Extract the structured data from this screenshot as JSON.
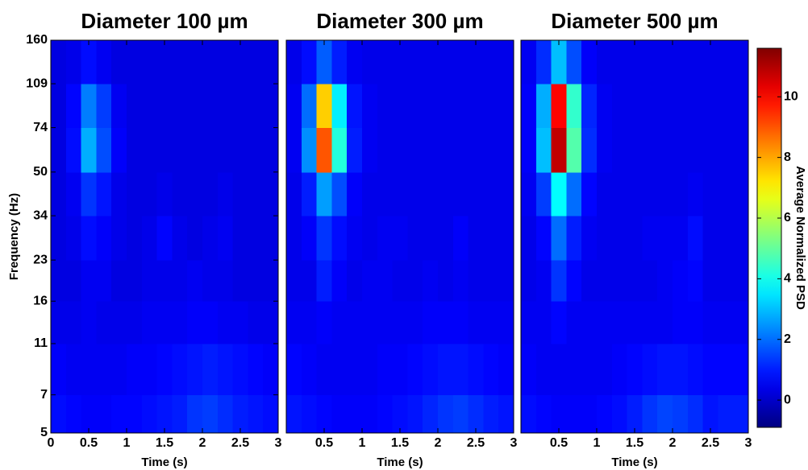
{
  "chart_data": [
    {
      "type": "heatmap",
      "title": "Diameter 100 µm",
      "xlabel": "Time (s)",
      "ylabel": "Frequency (Hz)",
      "xbins": [
        0,
        0.2,
        0.4,
        0.6,
        0.8,
        1,
        1.2,
        1.4,
        1.6,
        1.8,
        2,
        2.2,
        2.4,
        2.6,
        2.8,
        3
      ],
      "ybins": [
        5,
        7,
        11,
        16,
        23,
        34,
        50,
        74,
        109,
        160
      ],
      "z": [
        [
          0.8,
          0.7,
          0.6,
          0.6,
          0.7,
          0.7,
          0.8,
          0.9,
          1.0,
          1.3,
          1.4,
          1.2,
          1.0,
          0.9,
          0.8
        ],
        [
          0.6,
          0.5,
          0.5,
          0.5,
          0.5,
          0.6,
          0.6,
          0.7,
          0.8,
          0.9,
          1.0,
          0.9,
          0.8,
          0.7,
          0.6
        ],
        [
          0.4,
          0.4,
          0.5,
          0.4,
          0.4,
          0.4,
          0.5,
          0.5,
          0.5,
          0.6,
          0.6,
          0.5,
          0.5,
          0.4,
          0.4
        ],
        [
          0.3,
          0.3,
          0.5,
          0.5,
          0.3,
          0.3,
          0.4,
          0.4,
          0.4,
          0.5,
          0.4,
          0.4,
          0.3,
          0.3,
          0.3
        ],
        [
          0.3,
          0.4,
          0.8,
          0.6,
          0.4,
          0.3,
          0.4,
          0.7,
          0.4,
          0.3,
          0.4,
          0.5,
          0.3,
          0.3,
          0.3
        ],
        [
          0.3,
          0.5,
          1.3,
          0.9,
          0.4,
          0.3,
          0.3,
          0.4,
          0.3,
          0.3,
          0.3,
          0.4,
          0.3,
          0.3,
          0.3
        ],
        [
          0.3,
          0.8,
          2.8,
          1.6,
          0.6,
          0.3,
          0.3,
          0.3,
          0.3,
          0.3,
          0.3,
          0.3,
          0.3,
          0.3,
          0.3
        ],
        [
          0.3,
          0.7,
          2.2,
          1.4,
          0.5,
          0.3,
          0.3,
          0.3,
          0.3,
          0.3,
          0.3,
          0.3,
          0.3,
          0.3,
          0.3
        ],
        [
          0.3,
          0.4,
          0.8,
          0.5,
          0.3,
          0.3,
          0.3,
          0.3,
          0.3,
          0.3,
          0.3,
          0.3,
          0.3,
          0.3,
          0.3
        ]
      ],
      "xlim": [
        0,
        3
      ],
      "ylim": [
        5,
        160
      ],
      "ylog": true,
      "xticks": [
        0,
        0.5,
        1,
        1.5,
        2,
        2.5,
        3
      ],
      "yticks": [
        5,
        7,
        11,
        16,
        23,
        34,
        50,
        74,
        109,
        160
      ]
    },
    {
      "type": "heatmap",
      "title": "Diameter 300 µm",
      "xlabel": "Time (s)",
      "xbins": [
        0,
        0.2,
        0.4,
        0.6,
        0.8,
        1,
        1.2,
        1.4,
        1.6,
        1.8,
        2,
        2.2,
        2.4,
        2.6,
        2.8,
        3
      ],
      "ybins": [
        5,
        7,
        11,
        16,
        23,
        34,
        50,
        74,
        109,
        160
      ],
      "z": [
        [
          0.9,
          0.8,
          0.7,
          0.6,
          0.6,
          0.6,
          0.7,
          0.8,
          0.9,
          1.1,
          1.3,
          1.4,
          1.2,
          1.0,
          0.9
        ],
        [
          0.7,
          0.6,
          0.5,
          0.5,
          0.5,
          0.5,
          0.6,
          0.6,
          0.7,
          0.8,
          0.9,
          0.9,
          0.8,
          0.7,
          0.6
        ],
        [
          0.5,
          0.5,
          0.6,
          0.5,
          0.5,
          0.5,
          0.5,
          0.5,
          0.5,
          0.6,
          0.6,
          0.6,
          0.5,
          0.5,
          0.5
        ],
        [
          0.4,
          0.4,
          1.0,
          0.6,
          0.4,
          0.5,
          0.5,
          0.4,
          0.4,
          0.5,
          0.4,
          0.5,
          0.4,
          0.4,
          0.4
        ],
        [
          0.4,
          0.6,
          1.3,
          0.8,
          0.5,
          0.4,
          0.5,
          0.5,
          0.4,
          0.4,
          0.4,
          0.6,
          0.4,
          0.4,
          0.4
        ],
        [
          0.4,
          1.0,
          2.6,
          1.6,
          0.6,
          0.4,
          0.4,
          0.4,
          0.4,
          0.4,
          0.4,
          0.4,
          0.4,
          0.4,
          0.4
        ],
        [
          0.5,
          2.4,
          9.0,
          4.2,
          1.0,
          0.5,
          0.4,
          0.4,
          0.4,
          0.4,
          0.4,
          0.4,
          0.4,
          0.4,
          0.4
        ],
        [
          0.5,
          2.0,
          7.5,
          3.6,
          0.9,
          0.5,
          0.4,
          0.4,
          0.4,
          0.4,
          0.4,
          0.4,
          0.4,
          0.4,
          0.4
        ],
        [
          0.4,
          0.8,
          1.8,
          1.0,
          0.5,
          0.4,
          0.4,
          0.4,
          0.4,
          0.4,
          0.4,
          0.4,
          0.4,
          0.4,
          0.4
        ]
      ],
      "xlim": [
        0,
        3
      ],
      "ylim": [
        5,
        160
      ],
      "ylog": true,
      "xticks": [
        0.5,
        1,
        1.5,
        2,
        2.5,
        3
      ]
    },
    {
      "type": "heatmap",
      "title": "Diameter 500 µm",
      "xlabel": "Time (s)",
      "xbins": [
        0,
        0.2,
        0.4,
        0.6,
        0.8,
        1,
        1.2,
        1.4,
        1.6,
        1.8,
        2,
        2.2,
        2.4,
        2.6,
        2.8,
        3
      ],
      "ybins": [
        5,
        7,
        11,
        16,
        23,
        34,
        50,
        74,
        109,
        160
      ],
      "z": [
        [
          0.8,
          0.7,
          0.6,
          0.6,
          0.6,
          0.7,
          0.8,
          1.0,
          1.3,
          1.5,
          1.4,
          1.2,
          0.9,
          1.0,
          1.0
        ],
        [
          0.6,
          0.5,
          0.5,
          0.5,
          0.5,
          0.5,
          0.6,
          0.7,
          0.8,
          0.9,
          0.9,
          0.8,
          0.7,
          0.7,
          0.7
        ],
        [
          0.5,
          0.5,
          0.7,
          0.5,
          0.5,
          0.5,
          0.5,
          0.5,
          0.5,
          0.5,
          0.6,
          0.6,
          0.5,
          0.5,
          0.5
        ],
        [
          0.4,
          0.5,
          1.3,
          0.7,
          0.4,
          0.4,
          0.4,
          0.4,
          0.4,
          0.5,
          0.6,
          0.7,
          0.4,
          0.4,
          0.4
        ],
        [
          0.4,
          0.7,
          2.0,
          1.0,
          0.5,
          0.4,
          0.4,
          0.4,
          0.5,
          0.5,
          0.5,
          0.8,
          0.4,
          0.4,
          0.4
        ],
        [
          0.5,
          1.4,
          3.8,
          2.0,
          0.7,
          0.4,
          0.4,
          0.4,
          0.4,
          0.4,
          0.4,
          0.5,
          0.4,
          0.4,
          0.4
        ],
        [
          0.6,
          3.0,
          10.8,
          4.8,
          1.2,
          0.5,
          0.4,
          0.4,
          0.4,
          0.4,
          0.4,
          0.4,
          0.4,
          0.4,
          0.4
        ],
        [
          0.6,
          2.8,
          10.0,
          4.4,
          1.1,
          0.5,
          0.4,
          0.4,
          0.4,
          0.4,
          0.4,
          0.4,
          0.4,
          0.4,
          0.4
        ],
        [
          0.5,
          1.2,
          3.0,
          1.6,
          0.6,
          0.4,
          0.4,
          0.4,
          0.4,
          0.4,
          0.4,
          0.4,
          0.4,
          0.4,
          0.4
        ]
      ],
      "xlim": [
        0,
        3
      ],
      "ylim": [
        5,
        160
      ],
      "ylog": true,
      "xticks": [
        0.5,
        1,
        1.5,
        2,
        2.5,
        3
      ]
    },
    {
      "type": "colorbar",
      "label": "Average Normalized PSD",
      "colormap": "jet",
      "clim": [
        -0.9,
        11.6
      ],
      "cticks": [
        0,
        2,
        4,
        6,
        8,
        10
      ]
    }
  ]
}
